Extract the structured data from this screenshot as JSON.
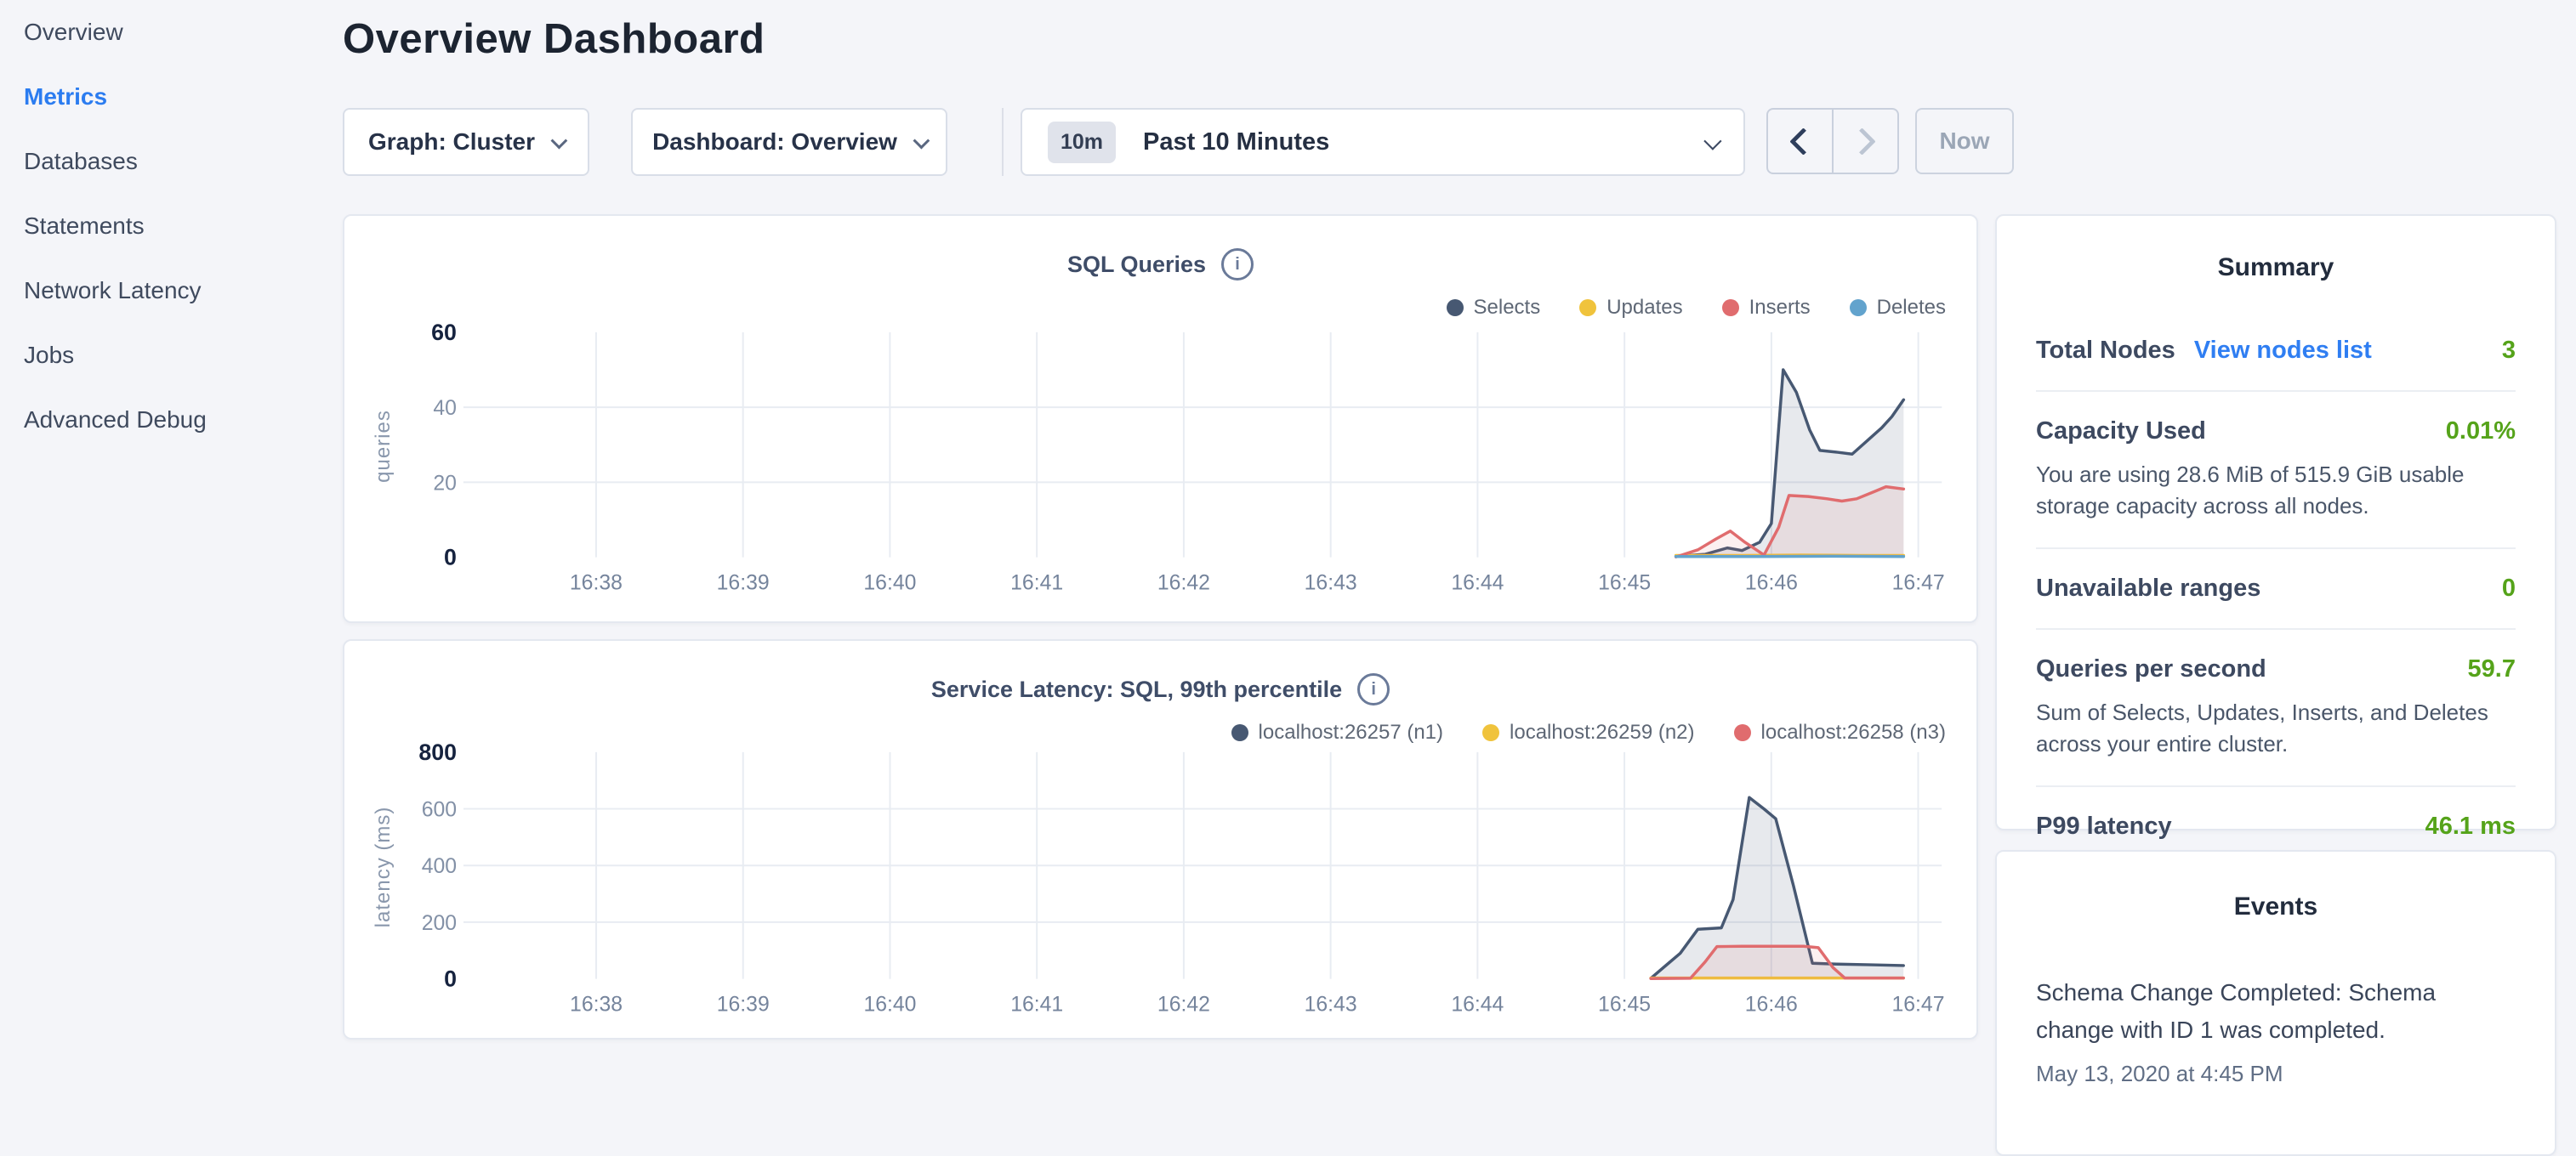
{
  "header": {
    "title": "Overview Dashboard"
  },
  "sidebar": {
    "items": [
      {
        "label": "Overview",
        "active": false
      },
      {
        "label": "Metrics",
        "active": true
      },
      {
        "label": "Databases",
        "active": false
      },
      {
        "label": "Statements",
        "active": false
      },
      {
        "label": "Network Latency",
        "active": false
      },
      {
        "label": "Jobs",
        "active": false
      },
      {
        "label": "Advanced Debug",
        "active": false
      }
    ]
  },
  "controls": {
    "graph_dropdown": "Graph: Cluster",
    "dashboard_dropdown": "Dashboard: Overview",
    "time_badge": "10m",
    "time_label": "Past 10 Minutes",
    "now_label": "Now"
  },
  "summary": {
    "title": "Summary",
    "rows": [
      {
        "label": "Total Nodes",
        "link": "View nodes list",
        "value": "3"
      },
      {
        "label": "Capacity Used",
        "value": "0.01%",
        "desc": "You are using 28.6 MiB of 515.9 GiB usable storage capacity across all nodes."
      },
      {
        "label": "Unavailable ranges",
        "value": "0"
      },
      {
        "label": "Queries per second",
        "value": "59.7",
        "desc": "Sum of Selects, Updates, Inserts, and Deletes across your entire cluster."
      },
      {
        "label": "P99 latency",
        "value": "46.1 ms"
      }
    ]
  },
  "events": {
    "title": "Events",
    "items": [
      {
        "message": "Schema Change Completed: Schema change with ID 1 was completed.",
        "timestamp": "May 13, 2020 at 4:45 PM"
      }
    ]
  },
  "colors": {
    "nav_active_blue": "#2b7cf0",
    "link_blue": "#2f7ef2",
    "value_green": "#55a31a",
    "gridline": "#e8ecf2"
  },
  "chart_data": [
    {
      "type": "line",
      "title": "SQL Queries",
      "ylabel": "queries",
      "ylim": [
        0,
        60
      ],
      "y_ticks": [
        0,
        20,
        40,
        60
      ],
      "x_domain": [
        37.2,
        47.16
      ],
      "x_ticks": [
        {
          "v": 38,
          "label": "16:38"
        },
        {
          "v": 39,
          "label": "16:39"
        },
        {
          "v": 40,
          "label": "16:40"
        },
        {
          "v": 41,
          "label": "16:41"
        },
        {
          "v": 42,
          "label": "16:42"
        },
        {
          "v": 43,
          "label": "16:43"
        },
        {
          "v": 44,
          "label": "16:44"
        },
        {
          "v": 45,
          "label": "16:45"
        },
        {
          "v": 46,
          "label": "16:46"
        },
        {
          "v": 47,
          "label": "16:47"
        }
      ],
      "legend_position": "top-right",
      "grid": true,
      "series": [
        {
          "name": "Selects",
          "color": "#475872",
          "fill": "rgba(71,88,114,0.13)",
          "points": [
            [
              45.35,
              0.3
            ],
            [
              45.55,
              0.8
            ],
            [
              45.7,
              2.5
            ],
            [
              45.8,
              1.8
            ],
            [
              45.92,
              4
            ],
            [
              46.0,
              9
            ],
            [
              46.08,
              50
            ],
            [
              46.17,
              44
            ],
            [
              46.26,
              34
            ],
            [
              46.33,
              28.5
            ],
            [
              46.45,
              28
            ],
            [
              46.55,
              27.5
            ],
            [
              46.65,
              31
            ],
            [
              46.75,
              34.5
            ],
            [
              46.82,
              37.5
            ],
            [
              46.9,
              42
            ]
          ]
        },
        {
          "name": "Updates",
          "color": "#f0c33c",
          "fill": "none",
          "points": [
            [
              45.35,
              0.5
            ],
            [
              45.8,
              0.5
            ],
            [
              46.2,
              0.6
            ],
            [
              46.6,
              0.5
            ],
            [
              46.9,
              0.5
            ]
          ]
        },
        {
          "name": "Inserts",
          "color": "#e06c6e",
          "fill": "rgba(224,108,110,0.10)",
          "points": [
            [
              45.35,
              0.1
            ],
            [
              45.5,
              2
            ],
            [
              45.62,
              4.8
            ],
            [
              45.72,
              7
            ],
            [
              45.82,
              4
            ],
            [
              45.95,
              0.6
            ],
            [
              46.05,
              8
            ],
            [
              46.12,
              16.5
            ],
            [
              46.25,
              16.2
            ],
            [
              46.38,
              15.6
            ],
            [
              46.48,
              15
            ],
            [
              46.58,
              15.6
            ],
            [
              46.7,
              17.5
            ],
            [
              46.78,
              18.8
            ],
            [
              46.9,
              18.2
            ]
          ]
        },
        {
          "name": "Deletes",
          "color": "#62a3cd",
          "fill": "none",
          "points": [
            [
              45.35,
              0.2
            ],
            [
              45.9,
              0.2
            ],
            [
              46.4,
              0.3
            ],
            [
              46.9,
              0.2
            ]
          ]
        }
      ]
    },
    {
      "type": "line",
      "title": "Service Latency: SQL, 99th percentile",
      "ylabel": "latency (ms)",
      "ylim": [
        0,
        800
      ],
      "y_ticks": [
        0,
        200,
        400,
        600,
        800
      ],
      "x_domain": [
        37.2,
        47.16
      ],
      "x_ticks": [
        {
          "v": 38,
          "label": "16:38"
        },
        {
          "v": 39,
          "label": "16:39"
        },
        {
          "v": 40,
          "label": "16:40"
        },
        {
          "v": 41,
          "label": "16:41"
        },
        {
          "v": 42,
          "label": "16:42"
        },
        {
          "v": 43,
          "label": "16:43"
        },
        {
          "v": 44,
          "label": "16:44"
        },
        {
          "v": 45,
          "label": "16:45"
        },
        {
          "v": 46,
          "label": "16:46"
        },
        {
          "v": 47,
          "label": "16:47"
        }
      ],
      "legend_position": "top-right",
      "grid": true,
      "series": [
        {
          "name": "localhost:26257 (n1)",
          "color": "#475872",
          "fill": "rgba(71,88,114,0.13)",
          "points": [
            [
              45.18,
              2
            ],
            [
              45.3,
              55
            ],
            [
              45.38,
              90
            ],
            [
              45.5,
              175
            ],
            [
              45.66,
              180
            ],
            [
              45.74,
              280
            ],
            [
              45.85,
              640
            ],
            [
              45.95,
              600
            ],
            [
              46.03,
              565
            ],
            [
              46.15,
              330
            ],
            [
              46.28,
              55
            ],
            [
              46.45,
              52
            ],
            [
              46.65,
              50
            ],
            [
              46.9,
              47
            ]
          ]
        },
        {
          "name": "localhost:26259 (n2)",
          "color": "#f0c33c",
          "fill": "none",
          "points": [
            [
              45.18,
              3
            ],
            [
              45.6,
              3
            ],
            [
              46.1,
              3
            ],
            [
              46.5,
              3
            ],
            [
              46.9,
              3
            ]
          ]
        },
        {
          "name": "localhost:26258 (n3)",
          "color": "#e06c6e",
          "fill": "rgba(224,108,110,0.10)",
          "points": [
            [
              45.18,
              1
            ],
            [
              45.45,
              2
            ],
            [
              45.55,
              60
            ],
            [
              45.63,
              114
            ],
            [
              45.8,
              115
            ],
            [
              46.0,
              115
            ],
            [
              46.22,
              115
            ],
            [
              46.32,
              110
            ],
            [
              46.42,
              40
            ],
            [
              46.5,
              3
            ],
            [
              46.7,
              3
            ],
            [
              46.9,
              3
            ]
          ]
        }
      ]
    }
  ]
}
